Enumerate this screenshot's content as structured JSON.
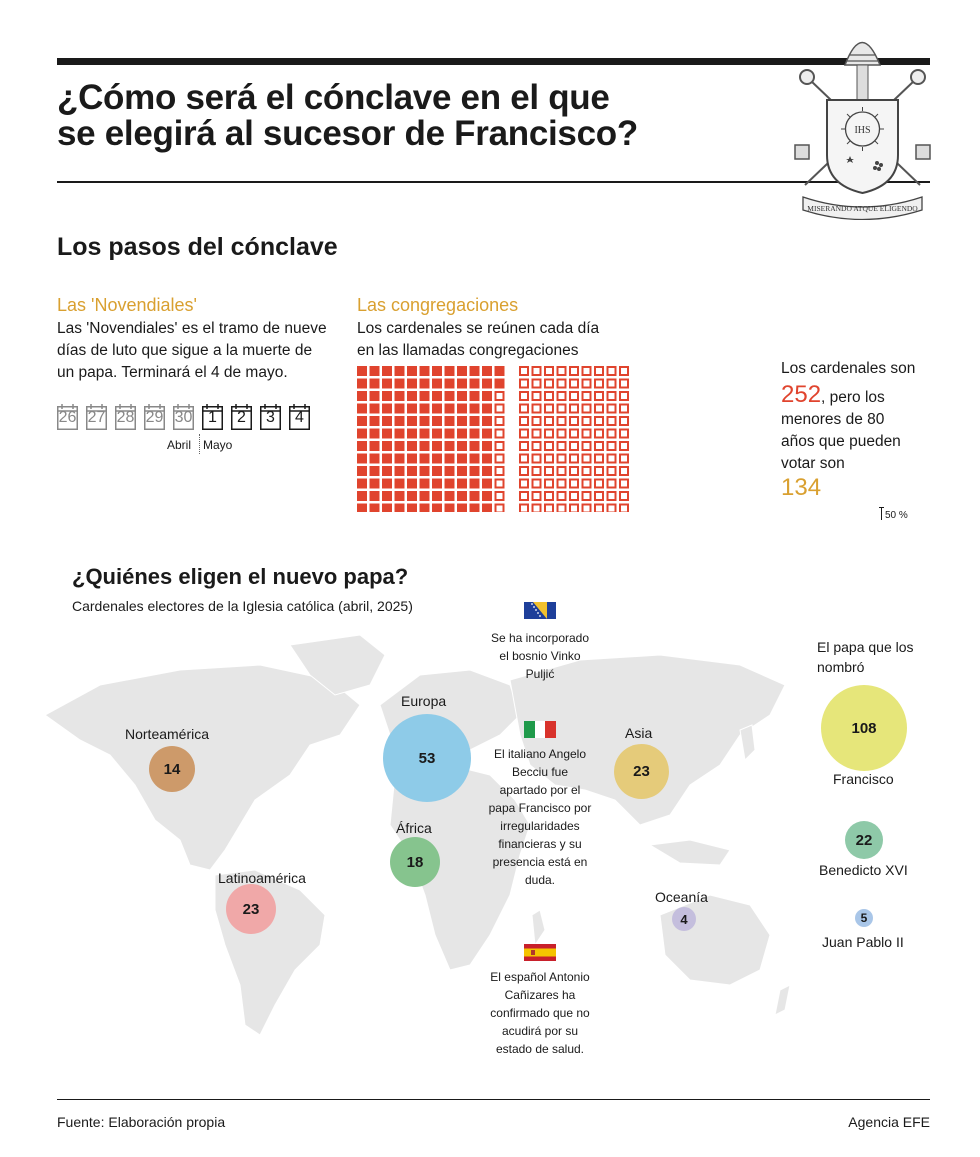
{
  "header": {
    "title_line1": "¿Cómo será el cónclave en el que",
    "title_line2": "se elegirá al sucesor de Francisco?",
    "coat_of_arms_motto": "MISERANDO ATQUE ELIGENDO",
    "coat_of_arms_monogram": "IHS"
  },
  "steps": {
    "heading": "Los pasos del cónclave",
    "novendiales": {
      "title": "Las 'Novendiales'",
      "line1": "Las 'Novendiales' es el tramo de nueve",
      "line2": "días de luto que sigue a la muerte de",
      "line3": "un papa. Terminará el 4 de mayo.",
      "days": [
        "26",
        "27",
        "28",
        "29",
        "30",
        "1",
        "2",
        "3",
        "4"
      ],
      "month_april": "Abril",
      "month_may": "Mayo"
    },
    "congregaciones": {
      "title": "Las congregaciones",
      "line1": "Los cardenales se reúnen cada día",
      "line2": "en las llamadas congregaciones"
    },
    "cardinals": {
      "line1": "Los cardenales son",
      "total": "252",
      "line2": ", pero los",
      "line3": "menores de 80",
      "line4": "años que pueden",
      "line5": "votar son",
      "electors": "134",
      "percent_label": "50 %"
    }
  },
  "electors": {
    "heading": "¿Quiénes eligen el nuevo papa?",
    "caption": "Cardenales electores de la Iglesia católica (abril, 2025)",
    "regions": [
      {
        "name": "Norteamérica",
        "value": "14",
        "color": "#cd9a6a"
      },
      {
        "name": "Europa",
        "value": "53",
        "color": "#8ecbe8"
      },
      {
        "name": "Asia",
        "value": "23",
        "color": "#e5cb7a"
      },
      {
        "name": "África",
        "value": "18",
        "color": "#86c48e"
      },
      {
        "name": "Latinoamérica",
        "value": "23",
        "color": "#f0a8a8"
      },
      {
        "name": "Oceanía",
        "value": "4",
        "color": "#c4bedd"
      }
    ],
    "notes": {
      "bosnia_l1": "Se ha incorporado",
      "bosnia_l2": "el bosnio Vinko",
      "bosnia_l3": "Puljić",
      "italy_l1": "El italiano Angelo",
      "italy_l2": "Becciu fue",
      "italy_l3": "apartado por el",
      "italy_l4": "papa Francisco por",
      "italy_l5": "irregularidades",
      "italy_l6": "financieras y su",
      "italy_l7": "presencia está en",
      "italy_l8": "duda.",
      "spain_l1": "El español Antonio",
      "spain_l2": "Cañizares ha",
      "spain_l3": "confirmado que no",
      "spain_l4": "acudirá por su",
      "spain_l5": "estado de salud."
    },
    "popes": {
      "heading_l1": "El papa que los",
      "heading_l2": "nombró",
      "items": [
        {
          "name": "Francisco",
          "value": "108",
          "color": "#e6e67a"
        },
        {
          "name": "Benedicto XVI",
          "value": "22",
          "color": "#8ec9a8"
        },
        {
          "name": "Juan Pablo II",
          "value": "5",
          "color": "#a9c6e8"
        }
      ]
    }
  },
  "footer": {
    "source": "Fuente: Elaboración propia",
    "agency": "Agencia EFE"
  },
  "colors": {
    "accent_orange": "#d9a030",
    "accent_red": "#e0442e"
  }
}
